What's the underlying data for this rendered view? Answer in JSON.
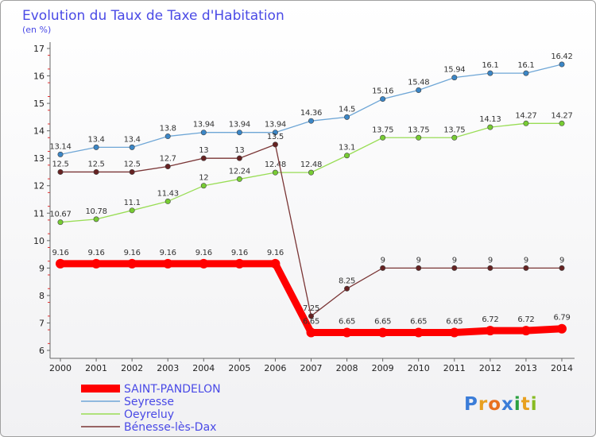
{
  "chart_data": {
    "type": "line",
    "title": "Evolution du Taux de Taxe d'Habitation",
    "subtitle": "(en %)",
    "x": [
      "2000",
      "2001",
      "2002",
      "2003",
      "2004",
      "2005",
      "2006",
      "2007",
      "2008",
      "2009",
      "2010",
      "2011",
      "2012",
      "2013",
      "2014"
    ],
    "y_ticks": [
      "6",
      "7",
      "8",
      "9",
      "10",
      "11",
      "12",
      "13",
      "14",
      "15",
      "16",
      "17"
    ],
    "ylim": [
      6,
      17
    ],
    "grid": false,
    "legend_position": "bottom-left",
    "series": [
      {
        "name": "SAINT-PANDELON",
        "color": "#ff0000",
        "values": [
          9.16,
          9.16,
          9.16,
          9.16,
          9.16,
          9.16,
          9.16,
          6.65,
          6.65,
          6.65,
          6.65,
          6.65,
          6.72,
          6.72,
          6.79
        ],
        "labels": [
          "9.16",
          "9.16",
          "9.16",
          "9.16",
          "9.16",
          "9.16",
          "9.16",
          "6.65",
          "6.65",
          "6.65",
          "6.65",
          "6.65",
          "6.72",
          "6.72",
          "6.79"
        ]
      },
      {
        "name": "Seyresse",
        "color": "#6ea6d6",
        "marker": "#3b86c6",
        "values": [
          13.14,
          13.4,
          13.4,
          13.8,
          13.94,
          13.94,
          13.94,
          14.36,
          14.5,
          15.16,
          15.48,
          15.94,
          16.1,
          16.1,
          16.42
        ],
        "labels": [
          "13.14",
          "13.4",
          "13.4",
          "13.8",
          "13.94",
          "13.94",
          "13.94",
          "14.36",
          "14.5",
          "15.16",
          "15.48",
          "15.94",
          "16.1",
          "16.1",
          "16.42"
        ]
      },
      {
        "name": "Oeyreluy",
        "color": "#99dd55",
        "marker": "#77cc33",
        "values": [
          10.67,
          10.78,
          11.1,
          11.43,
          12,
          12.24,
          12.48,
          12.48,
          13.1,
          13.75,
          13.75,
          13.75,
          14.13,
          14.27,
          14.27
        ],
        "labels": [
          "10.67",
          "10.78",
          "11.1",
          "11.43",
          "12",
          "12.24",
          "12.48",
          "12.48",
          "13.1",
          "13.75",
          "13.75",
          "13.75",
          "14.13",
          "14.27",
          "14.27"
        ]
      },
      {
        "name": "Bénesse-lès-Dax",
        "color": "#7a3535",
        "marker": "#662222",
        "values": [
          12.5,
          12.5,
          12.5,
          12.7,
          13,
          13,
          13.5,
          7.25,
          8.25,
          9,
          9,
          9,
          9,
          9,
          9
        ],
        "labels": [
          "12.5",
          "12.5",
          "12.5",
          "12.7",
          "13",
          "13",
          "13.5",
          "7.25",
          "8.25",
          "9",
          "9",
          "9",
          "9",
          "9",
          "9"
        ]
      }
    ]
  },
  "logo": {
    "letters": [
      "P",
      "r",
      "o",
      "x",
      "i",
      "t",
      "i"
    ],
    "colors": [
      "#3b7dd8",
      "#e8a020",
      "#e87020",
      "#3b7dd8",
      "#2aa040",
      "#e8a020",
      "#88bb22"
    ]
  }
}
